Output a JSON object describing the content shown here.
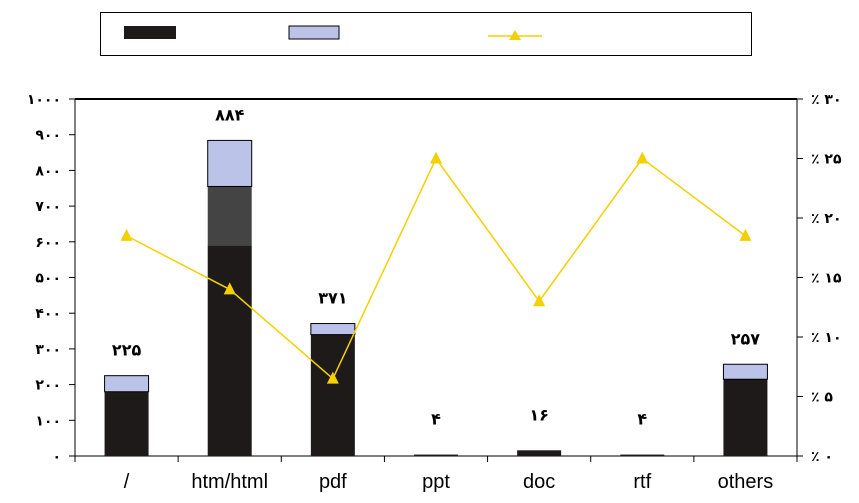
{
  "chart_data": {
    "type": "bar",
    "categories": [
      "/",
      "htm/html",
      "pdf",
      "ppt",
      "doc",
      "rtf",
      "others"
    ],
    "series": [
      {
        "values": [
          180,
          590,
          340,
          4,
          16,
          4,
          215
        ],
        "color": "#1f1a1a"
      },
      {
        "values": [
          0,
          165,
          0,
          0,
          0,
          0,
          0
        ],
        "color": "#444444"
      },
      {
        "values": [
          45,
          129,
          31,
          0,
          0,
          0,
          42
        ],
        "color": "#bcc3e8"
      }
    ],
    "totals_labels": [
      "۲۲۵",
      "۸۸۴",
      "۳۷۱",
      "۴",
      "۱۶",
      "۴",
      "۲۵۷"
    ],
    "line_series": {
      "values": [
        18.5,
        14,
        6.5,
        25,
        13,
        25,
        18.5
      ],
      "color": "#f5d000",
      "axis": "right"
    },
    "y_left": {
      "range": [
        0,
        1000
      ],
      "tick_values": [
        0,
        100,
        200,
        300,
        400,
        500,
        600,
        700,
        800,
        900,
        1000
      ],
      "tick_labels": [
        "۰",
        "۱۰۰",
        "۲۰۰",
        "۳۰۰",
        "۴۰۰",
        "۵۰۰",
        "۶۰۰",
        "۷۰۰",
        "۸۰۰",
        "۹۰۰",
        "۱۰۰۰"
      ]
    },
    "y_right": {
      "range": [
        0,
        30
      ],
      "tick_values": [
        0,
        5,
        10,
        15,
        20,
        25,
        30
      ],
      "tick_labels": [
        "٪ ۰",
        "٪ ۵",
        "٪ ۱۰",
        "٪ ۱۵",
        "٪ ۲۰",
        "٪ ۲۵",
        "٪ ۳۰"
      ]
    },
    "legend_placement": "top",
    "grid": false
  }
}
